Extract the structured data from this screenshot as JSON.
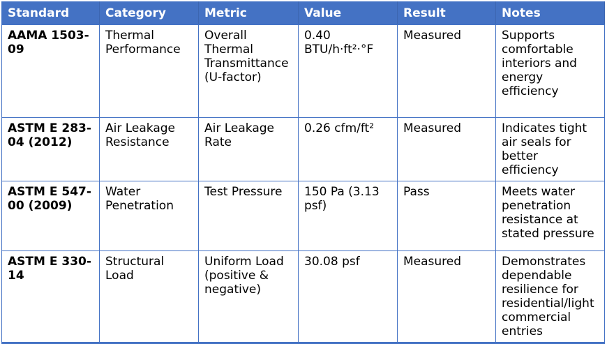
{
  "colors": {
    "header_bg": "#4472C4",
    "header_text": "#FFFFFF",
    "border": "#4472C4",
    "body_bg": "#FFFFFF",
    "body_text": "#000000"
  },
  "table": {
    "header": {
      "standard": "Standard",
      "category": "Category",
      "metric": "Metric",
      "value": "Value",
      "result": "Result",
      "notes": "Notes"
    },
    "rows": [
      {
        "standard": "AAMA 1503-09",
        "category": "Thermal Performance",
        "metric": "Overall Thermal Transmittance (U-factor)",
        "value": "0.40 BTU/h·ft²·°F",
        "result": "Measured",
        "notes": "Supports comfortable interiors and energy efficiency"
      },
      {
        "standard": "ASTM E 283-04 (2012)",
        "category": "Air Leakage Resistance",
        "metric": "Air Leakage Rate",
        "value": "0.26 cfm/ft²",
        "result": "Measured",
        "notes": "Indicates tight air seals for better efficiency"
      },
      {
        "standard": "ASTM E 547-00 (2009)",
        "category": "Water Penetration",
        "metric": "Test Pressure",
        "value": "150 Pa (3.13 psf)",
        "result": "Pass",
        "notes": "Meets water penetration resistance at stated pressure"
      },
      {
        "standard": "ASTM E 330-14",
        "category": "Structural Load",
        "metric": "Uniform Load (positive & negative)",
        "value": "30.08 psf",
        "result": "Measured",
        "notes": "Demonstrates dependable resilience for residential/light commercial entries"
      }
    ]
  }
}
